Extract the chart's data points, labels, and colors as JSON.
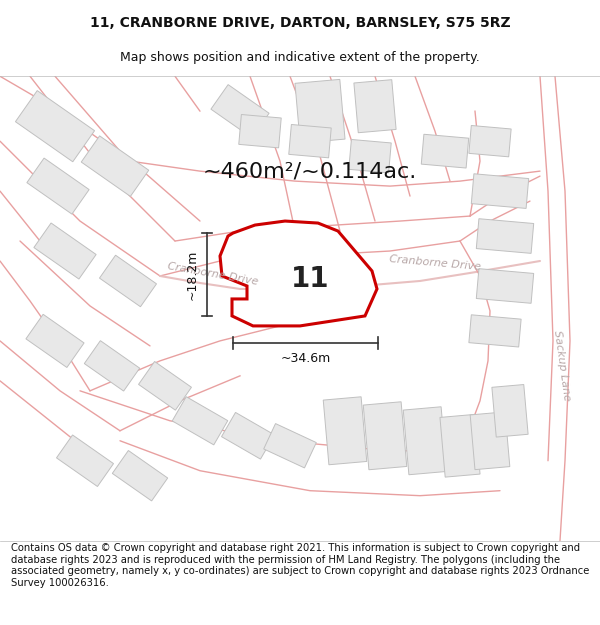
{
  "title_line1": "11, CRANBORNE DRIVE, DARTON, BARNSLEY, S75 5RZ",
  "title_line2": "Map shows position and indicative extent of the property.",
  "area_text": "~460m²/~0.114ac.",
  "label_number": "11",
  "dim_width": "~34.6m",
  "dim_height": "~18.2m",
  "road_label_left": "Cranborne Drive",
  "road_label_right": "Cranborne Drive",
  "road_label_diagonal": "Sackup Lane",
  "footer": "Contains OS data © Crown copyright and database right 2021. This information is subject to Crown copyright and database rights 2023 and is reproduced with the permission of HM Land Registry. The polygons (including the associated geometry, namely x, y co-ordinates) are subject to Crown copyright and database rights 2023 Ordnance Survey 100026316.",
  "plot_color": "#cc0000",
  "road_line_color": "#e8a0a0",
  "road_thick_color": "#e8c0c0",
  "building_fill": "#e8e8e8",
  "building_edge": "#c0c0c0",
  "map_bg": "#faf8f8",
  "title_fontsize": 10,
  "subtitle_fontsize": 9,
  "area_fontsize": 16,
  "footer_fontsize": 7.2,
  "number_fontsize": 20,
  "dim_fontsize": 9,
  "road_label_fontsize": 8,
  "road_label_color": "#b8a8a8"
}
